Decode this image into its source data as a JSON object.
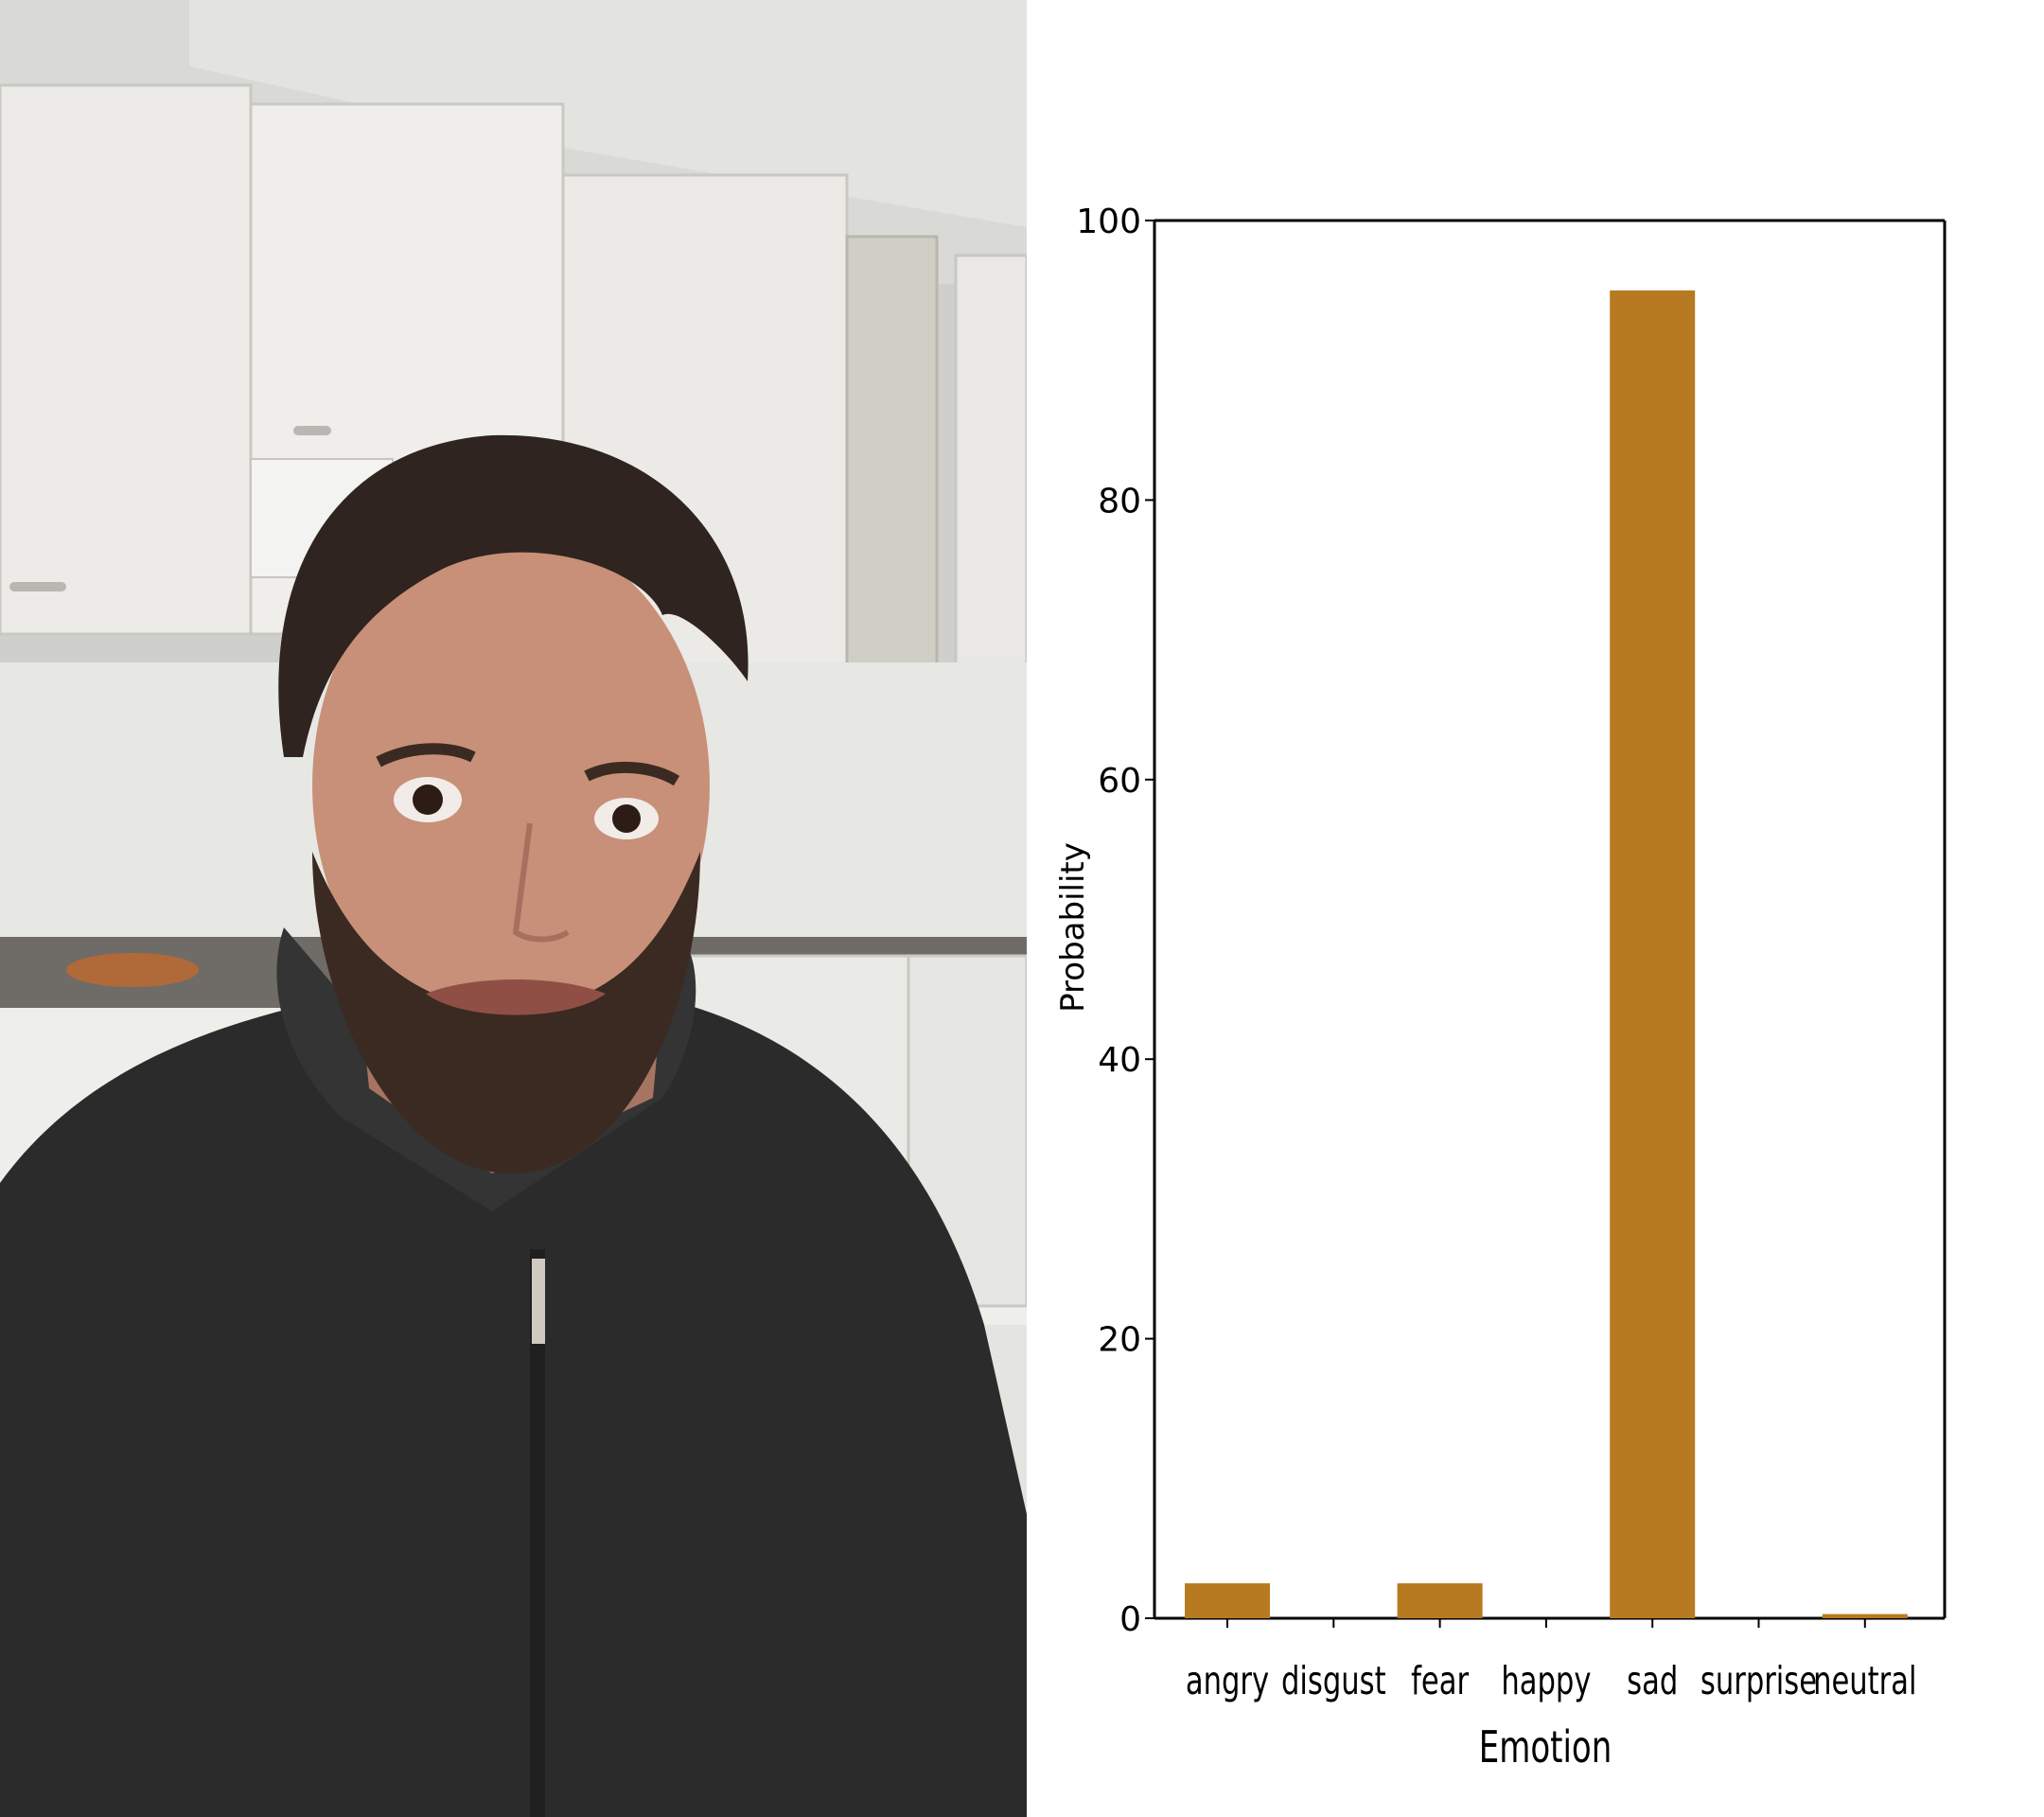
{
  "photo": {
    "description_icon": "person-photo"
  },
  "chart_data": {
    "type": "bar",
    "categories": [
      "angry",
      "disgust",
      "fear",
      "happy",
      "sad",
      "surprise",
      "neutral"
    ],
    "values": [
      2.5,
      0,
      2.5,
      0,
      95,
      0,
      0.3
    ],
    "xlabel": "Emotion",
    "ylabel": "Probability",
    "ylim": [
      0,
      100
    ],
    "yticks": [
      0,
      20,
      40,
      60,
      80,
      100
    ],
    "bar_color": "#b87a20",
    "grid": false
  }
}
